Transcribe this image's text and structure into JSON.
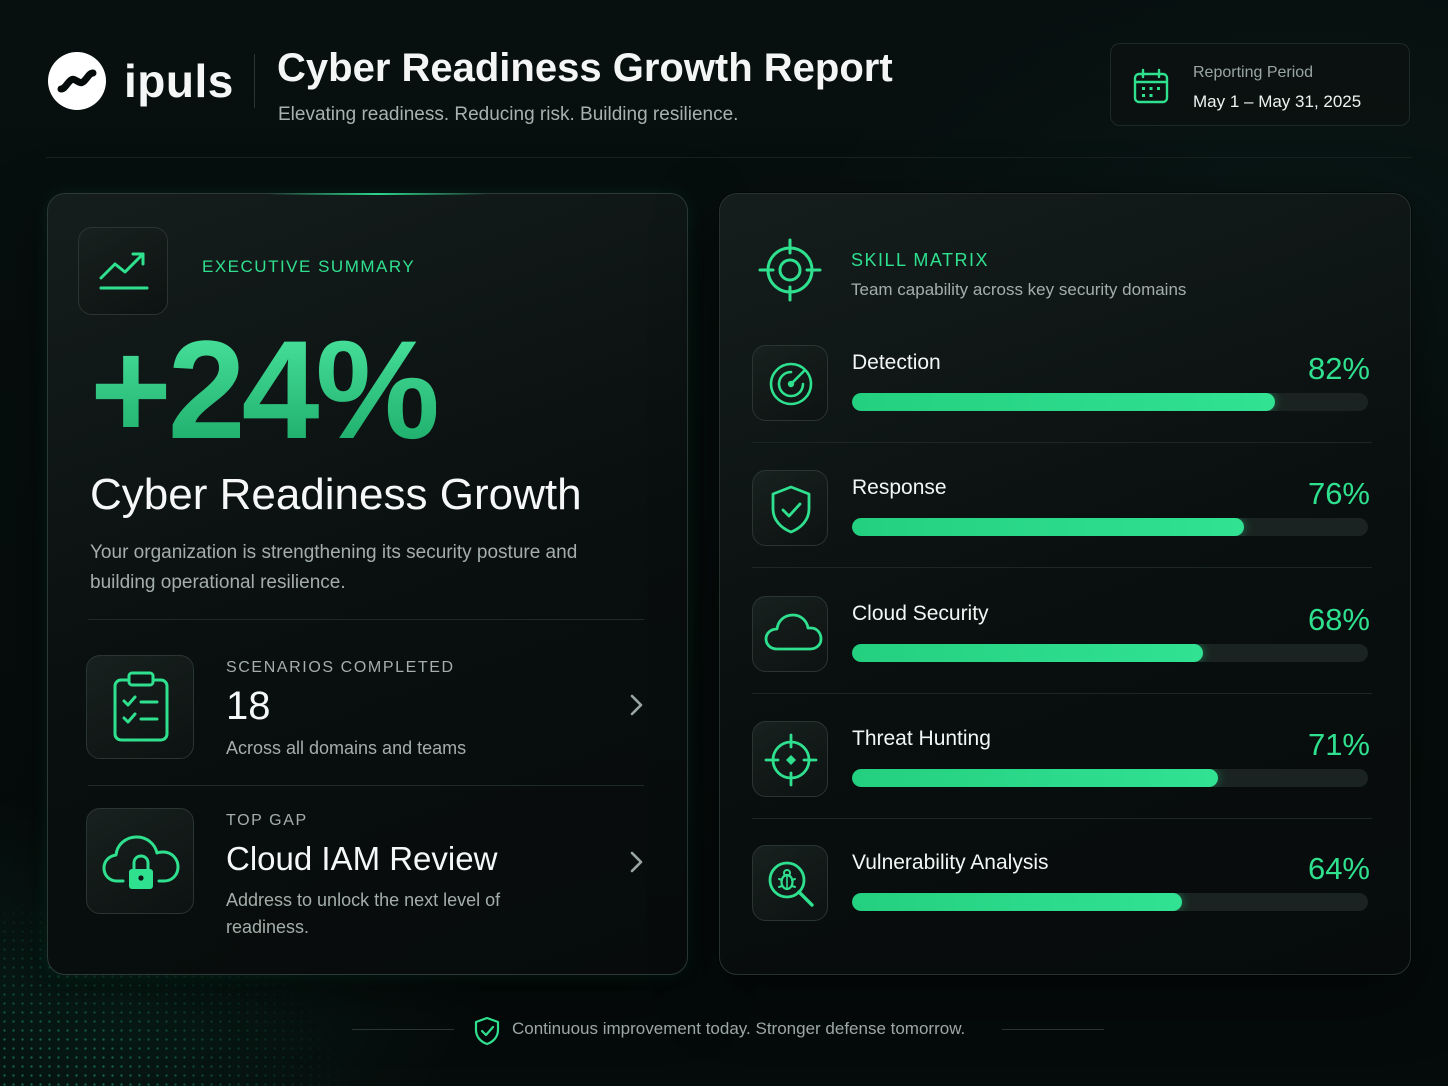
{
  "header": {
    "brand": "ipuls",
    "title": "Cyber Readiness Growth Report",
    "subtitle": "Elevating readiness. Reducing risk. Building resilience.",
    "period_label": "Reporting Period",
    "period_value": "May 1 – May 31, 2025"
  },
  "summary": {
    "eyebrow": "EXECUTIVE SUMMARY",
    "metric": "+24%",
    "metric_title": "Cyber Readiness Growth",
    "description": "Your organization is strengthening its security posture and building operational resilience.",
    "rows": [
      {
        "label": "SCENARIOS COMPLETED",
        "value": "18",
        "desc": "Across all domains and teams",
        "icon": "clipboard-check-icon"
      },
      {
        "label": "TOP GAP",
        "value": "Cloud IAM Review",
        "desc": "Address to unlock the next level of readiness.",
        "icon": "cloud-lock-icon"
      }
    ]
  },
  "skills": {
    "title": "SKILL MATRIX",
    "subtitle": "Team capability across key security domains",
    "items": [
      {
        "name": "Detection",
        "pct_label": "82%",
        "value": 0.82,
        "icon": "radar-icon"
      },
      {
        "name": "Response",
        "pct_label": "76%",
        "value": 0.76,
        "icon": "shield-check-icon"
      },
      {
        "name": "Cloud Security",
        "pct_label": "68%",
        "value": 0.68,
        "icon": "cloud-icon"
      },
      {
        "name": "Threat Hunting",
        "pct_label": "71%",
        "value": 0.71,
        "icon": "crosshair-icon"
      },
      {
        "name": "Vulnerability Analysis",
        "pct_label": "64%",
        "value": 0.64,
        "icon": "bug-search-icon"
      }
    ]
  },
  "footer": {
    "text": "Continuous improvement today. Stronger defense tomorrow."
  },
  "colors": {
    "accent": "#2fe08f",
    "background": "#050a0a",
    "panel_border": "#27322f",
    "track": "#1a2321"
  }
}
